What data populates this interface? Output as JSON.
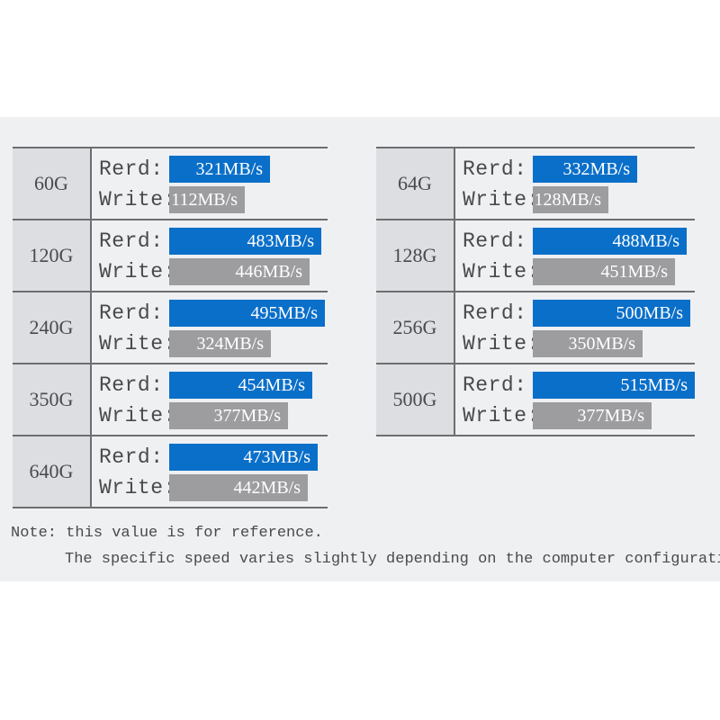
{
  "labels": {
    "read": "Rerd:",
    "write": "Write:"
  },
  "colors": {
    "read_bar": "#0a6fc9",
    "write_bar": "#9d9d9f",
    "capacity_cell": "#dcdee2",
    "panel": "#eff0f2"
  },
  "chart_data": {
    "type": "bar",
    "unit": "MB/s",
    "scale_max": 515,
    "rows": [
      {
        "capacity": "60G",
        "read": 321,
        "read_text": "321MB/s",
        "write": 112,
        "write_text": "112MB/s"
      },
      {
        "capacity": "120G",
        "read": 483,
        "read_text": "483MB/s",
        "write": 446,
        "write_text": "446MB/s"
      },
      {
        "capacity": "240G",
        "read": 495,
        "read_text": "495MB/s",
        "write": 324,
        "write_text": "324MB/s"
      },
      {
        "capacity": "350G",
        "read": 454,
        "read_text": "454MB/s",
        "write": 377,
        "write_text": "377MB/s"
      },
      {
        "capacity": "640G",
        "read": 473,
        "read_text": "473MB/s",
        "write": 442,
        "write_text": "442MB/s"
      },
      {
        "capacity": "64G",
        "read": 332,
        "read_text": "332MB/s",
        "write": 128,
        "write_text": "128MB/s"
      },
      {
        "capacity": "128G",
        "read": 488,
        "read_text": "488MB/s",
        "write": 451,
        "write_text": "451MB/s"
      },
      {
        "capacity": "256G",
        "read": 500,
        "read_text": "500MB/s",
        "write": 350,
        "write_text": "350MB/s"
      },
      {
        "capacity": "500G",
        "read": 515,
        "read_text": "515MB/s",
        "write": 377,
        "write_text": "377MB/s"
      }
    ]
  },
  "note": {
    "line1": "Note: this value is for reference.",
    "line2": "The specific speed varies slightly depending on the computer configuration."
  }
}
